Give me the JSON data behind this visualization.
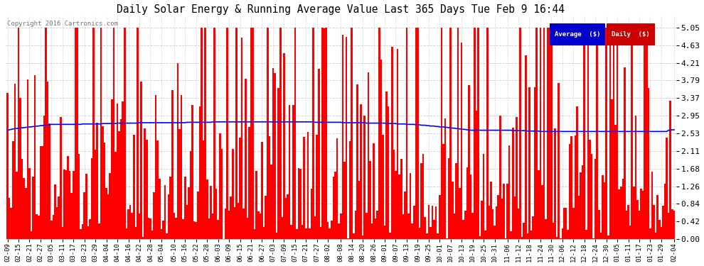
{
  "title": "Daily Solar Energy & Running Average Value Last 365 Days Tue Feb 9 16:44",
  "copyright": "Copyright 2016 Cartronics.com",
  "legend_avg": "Average  ($)",
  "legend_daily": "Daily  ($)",
  "bar_color": "#ff0000",
  "line_color": "#0000ff",
  "background_color": "#ffffff",
  "grid_color": "#999999",
  "ylim": [
    0.0,
    5.32
  ],
  "yticks": [
    0.0,
    0.42,
    0.84,
    1.26,
    1.68,
    2.11,
    2.53,
    2.95,
    3.37,
    3.79,
    4.21,
    4.63,
    5.05
  ],
  "x_labels": [
    "02-09",
    "02-15",
    "02-21",
    "02-27",
    "03-05",
    "03-11",
    "03-17",
    "03-23",
    "03-29",
    "04-04",
    "04-10",
    "04-16",
    "04-22",
    "04-28",
    "05-04",
    "05-10",
    "05-16",
    "05-22",
    "05-28",
    "06-03",
    "06-09",
    "06-15",
    "06-21",
    "06-27",
    "07-03",
    "07-09",
    "07-15",
    "07-21",
    "07-27",
    "08-02",
    "08-08",
    "08-14",
    "08-20",
    "08-26",
    "09-01",
    "09-07",
    "09-13",
    "09-19",
    "09-25",
    "10-01",
    "10-07",
    "10-13",
    "10-19",
    "10-25",
    "10-31",
    "11-06",
    "11-12",
    "11-18",
    "11-24",
    "11-30",
    "12-06",
    "12-12",
    "12-18",
    "12-24",
    "12-30",
    "01-05",
    "01-11",
    "01-17",
    "01-23",
    "01-29",
    "02-04"
  ],
  "avg_line": [
    2.6,
    2.61,
    2.62,
    2.63,
    2.64,
    2.64,
    2.65,
    2.65,
    2.66,
    2.66,
    2.67,
    2.67,
    2.68,
    2.68,
    2.69,
    2.69,
    2.7,
    2.7,
    2.71,
    2.71,
    2.72,
    2.72,
    2.73,
    2.73,
    2.74,
    2.74,
    2.74,
    2.74,
    2.74,
    2.74,
    2.74,
    2.74,
    2.74,
    2.74,
    2.74,
    2.74,
    2.74,
    2.74,
    2.74,
    2.74,
    2.74,
    2.75,
    2.75,
    2.75,
    2.75,
    2.75,
    2.75,
    2.75,
    2.75,
    2.75,
    2.75,
    2.75,
    2.76,
    2.76,
    2.76,
    2.76,
    2.76,
    2.76,
    2.76,
    2.76,
    2.77,
    2.77,
    2.77,
    2.77,
    2.77,
    2.77,
    2.77,
    2.77,
    2.77,
    2.77,
    2.77,
    2.77,
    2.78,
    2.78,
    2.78,
    2.78,
    2.78,
    2.78,
    2.78,
    2.78,
    2.78,
    2.78,
    2.78,
    2.78,
    2.78,
    2.78,
    2.78,
    2.78,
    2.78,
    2.78,
    2.78,
    2.78,
    2.78,
    2.78,
    2.78,
    2.78,
    2.78,
    2.78,
    2.79,
    2.79,
    2.79,
    2.79,
    2.79,
    2.79,
    2.79,
    2.79,
    2.79,
    2.79,
    2.79,
    2.79,
    2.79,
    2.79,
    2.8,
    2.8,
    2.8,
    2.8,
    2.8,
    2.8,
    2.8,
    2.8,
    2.8,
    2.8,
    2.8,
    2.8,
    2.8,
    2.8,
    2.8,
    2.8,
    2.8,
    2.8,
    2.8,
    2.8,
    2.8,
    2.8,
    2.8,
    2.8,
    2.8,
    2.8,
    2.8,
    2.8,
    2.8,
    2.8,
    2.8,
    2.8,
    2.8,
    2.8,
    2.8,
    2.8,
    2.8,
    2.8,
    2.8,
    2.8,
    2.8,
    2.8,
    2.8,
    2.8,
    2.8,
    2.8,
    2.8,
    2.8,
    2.8,
    2.8,
    2.8,
    2.8,
    2.8,
    2.8,
    2.8,
    2.8,
    2.79,
    2.79,
    2.79,
    2.79,
    2.79,
    2.79,
    2.79,
    2.79,
    2.79,
    2.79,
    2.79,
    2.79,
    2.79,
    2.79,
    2.79,
    2.78,
    2.78,
    2.78,
    2.78,
    2.78,
    2.78,
    2.78,
    2.78,
    2.78,
    2.78,
    2.78,
    2.78,
    2.78,
    2.77,
    2.77,
    2.77,
    2.77,
    2.77,
    2.77,
    2.77,
    2.77,
    2.77,
    2.77,
    2.77,
    2.76,
    2.76,
    2.76,
    2.76,
    2.76,
    2.76,
    2.75,
    2.75,
    2.75,
    2.75,
    2.75,
    2.74,
    2.74,
    2.74,
    2.74,
    2.74,
    2.73,
    2.73,
    2.73,
    2.72,
    2.72,
    2.72,
    2.71,
    2.71,
    2.7,
    2.7,
    2.7,
    2.69,
    2.69,
    2.68,
    2.68,
    2.68,
    2.67,
    2.67,
    2.66,
    2.66,
    2.65,
    2.65,
    2.64,
    2.64,
    2.63,
    2.63,
    2.62,
    2.62,
    2.61,
    2.61,
    2.6,
    2.6,
    2.6,
    2.6,
    2.6,
    2.6,
    2.6,
    2.6,
    2.6,
    2.6,
    2.6,
    2.6,
    2.6,
    2.6,
    2.6,
    2.6,
    2.6,
    2.6,
    2.6,
    2.6,
    2.6,
    2.6,
    2.6,
    2.59,
    2.59,
    2.59,
    2.59,
    2.59,
    2.59,
    2.59,
    2.59,
    2.58,
    2.58,
    2.58,
    2.58,
    2.58,
    2.58,
    2.58,
    2.57,
    2.57,
    2.57,
    2.57,
    2.57,
    2.57,
    2.57,
    2.57,
    2.57,
    2.57,
    2.57,
    2.57,
    2.57,
    2.57,
    2.57,
    2.57,
    2.57,
    2.57,
    2.57,
    2.57,
    2.57,
    2.57,
    2.57,
    2.57,
    2.57,
    2.57,
    2.57,
    2.57,
    2.57,
    2.57,
    2.57,
    2.57,
    2.57,
    2.57,
    2.57,
    2.57,
    2.57,
    2.57,
    2.57,
    2.57,
    2.57,
    2.57,
    2.57,
    2.57,
    2.57,
    2.57,
    2.57,
    2.57,
    2.57,
    2.57,
    2.57,
    2.57,
    2.57,
    2.57,
    2.57,
    2.57,
    2.57,
    2.57,
    2.57,
    2.57,
    2.57,
    2.57,
    2.57,
    2.57,
    2.57,
    2.57,
    2.57,
    2.57,
    2.57,
    2.57,
    2.6,
    2.6,
    2.61,
    2.61
  ],
  "seed": 123
}
